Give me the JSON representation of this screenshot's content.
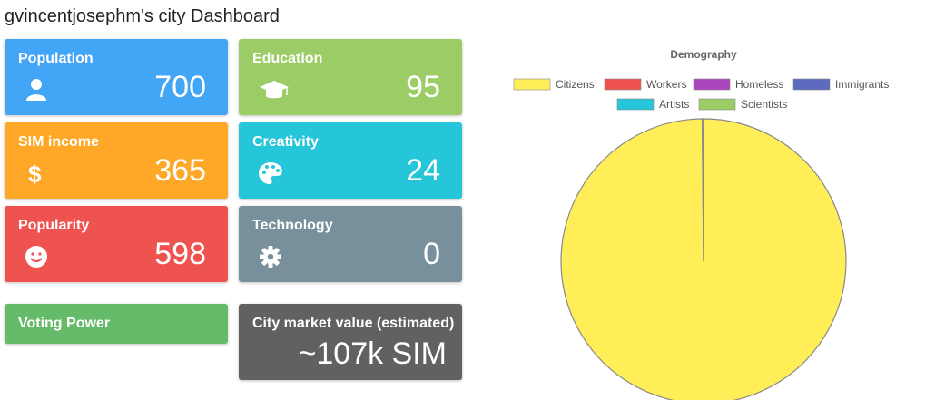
{
  "page": {
    "title": "gvincentjosephm's city Dashboard"
  },
  "cards": [
    {
      "label": "Population",
      "value": "700",
      "icon": "user-icon",
      "color": "#42a5f5"
    },
    {
      "label": "Education",
      "value": "95",
      "icon": "graduation-cap-icon",
      "color": "#9ccc65"
    },
    {
      "label": "SIM income",
      "value": "365",
      "icon": "dollar-icon",
      "color": "#ffa726"
    },
    {
      "label": "Creativity",
      "value": "24",
      "icon": "palette-icon",
      "color": "#26c6da"
    },
    {
      "label": "Popularity",
      "value": "598",
      "icon": "smile-icon",
      "color": "#ef5350"
    },
    {
      "label": "Technology",
      "value": "0",
      "icon": "gear-icon",
      "color": "#78909c"
    },
    {
      "label": "Voting Power",
      "color": "#66bb6a"
    },
    {
      "label": "City market value (estimated)",
      "value": "~107k SIM",
      "color": "#616161"
    }
  ],
  "chart_data": {
    "type": "pie",
    "title": "Demography",
    "legend_position": "top",
    "labels": [
      "Citizens",
      "Workers",
      "Homeless",
      "Immigrants",
      "Artists",
      "Scientists"
    ],
    "colors": [
      "#ffee58",
      "#ef5350",
      "#ab47bc",
      "#5c6bc0",
      "#26c6da",
      "#9ccc65"
    ],
    "values": [
      699,
      0,
      0,
      0,
      0,
      1
    ]
  }
}
